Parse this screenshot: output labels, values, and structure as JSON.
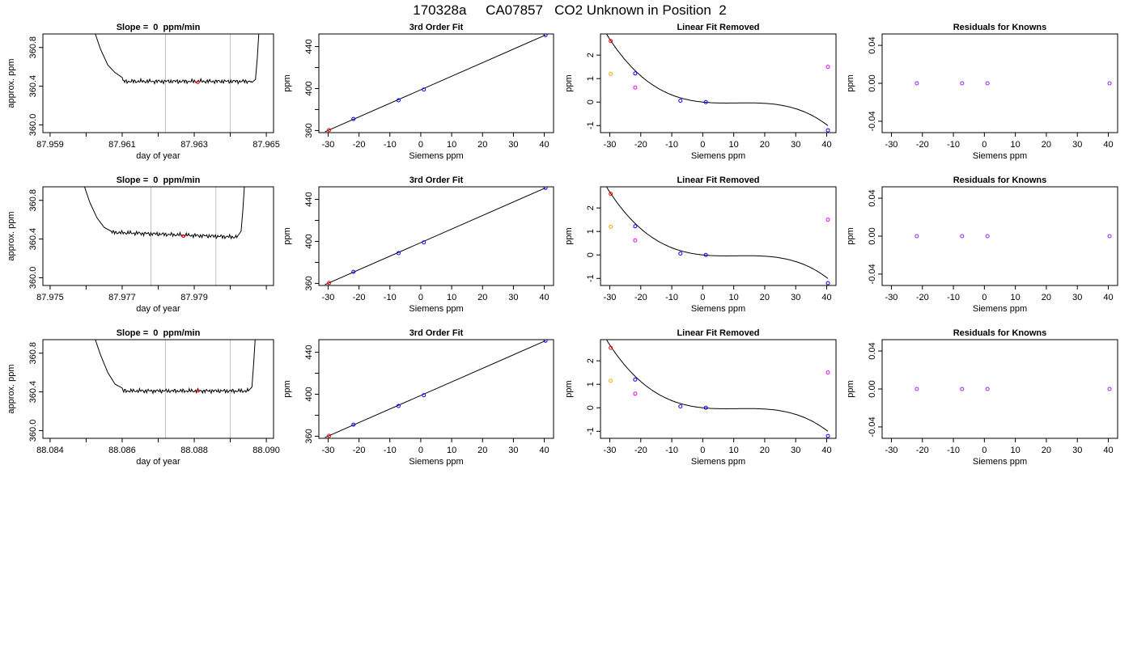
{
  "figure_title": "170328a     CA07857   CO2 Unknown in Position  2",
  "colors": {
    "line": "#000000",
    "vline": "#bebebe",
    "blue": "#0000ff",
    "red": "#ff0000",
    "orange": "#ffa500",
    "purple": "#a020f0",
    "magenta": "#ee00ee"
  },
  "chart_data": [
    {
      "type": "line",
      "title": "Slope =  0  ppm/min",
      "xlabel": "day of year",
      "ylabel": "approx. ppm",
      "xlim": [
        87.9588,
        87.9652
      ],
      "ylim": [
        359.92,
        360.94
      ],
      "xticks": [
        87.959,
        87.96,
        87.961,
        87.962,
        87.963,
        87.964,
        87.965
      ],
      "xtick_labels": [
        "87.959",
        "",
        "87.961",
        "",
        "87.963",
        "",
        "87.965"
      ],
      "yticks": [
        360.0,
        360.4,
        360.8
      ],
      "ytick_labels": [
        "360.0",
        "360.4",
        "360.8"
      ],
      "vlines": [
        87.9622,
        87.964
      ],
      "highlight": {
        "x": 87.9631,
        "y": 360.44,
        "color": "red"
      },
      "trace": {
        "x_start": 87.9602,
        "x_end": 87.9648,
        "baseline": 360.45,
        "baseline_end": 360.45,
        "left_tail": [
          [
            87.9602,
            361.0
          ],
          [
            87.9604,
            360.78
          ],
          [
            87.9606,
            360.62
          ],
          [
            87.9608,
            360.54
          ],
          [
            87.961,
            360.49
          ]
        ],
        "right_tail": [
          [
            87.9646,
            360.44
          ],
          [
            87.9647,
            360.47
          ],
          [
            87.96475,
            360.7
          ],
          [
            87.9648,
            361.0
          ]
        ]
      }
    },
    {
      "type": "scatter",
      "title": "3rd Order Fit",
      "xlabel": "Siemens ppm",
      "ylabel": "ppm",
      "xlim": [
        -33,
        43
      ],
      "ylim": [
        358,
        452
      ],
      "xticks": [
        -30,
        -20,
        -10,
        0,
        10,
        20,
        30,
        40
      ],
      "xtick_labels": [
        "-30",
        "-20",
        "-10",
        "0",
        "10",
        "20",
        "30",
        "40"
      ],
      "yticks": [
        360,
        380,
        400,
        420,
        440
      ],
      "ytick_labels": [
        "360",
        "",
        "400",
        "",
        "440"
      ],
      "points": [
        {
          "x": -29.7,
          "y": 360.4,
          "color": "red"
        },
        {
          "x": -21.8,
          "y": 371.0,
          "color": "blue"
        },
        {
          "x": -7.2,
          "y": 388.8,
          "color": "blue"
        },
        {
          "x": 1.0,
          "y": 399.0,
          "color": "blue"
        },
        {
          "x": 40.4,
          "y": 451.0,
          "color": "blue"
        }
      ],
      "fit": {
        "kind": "line",
        "x0": -31,
        "y0": 358.8,
        "x1": 40.4,
        "y1": 451.0
      }
    },
    {
      "type": "scatter",
      "title": "Linear Fit Removed",
      "xlabel": "Siemens ppm",
      "ylabel": "ppm",
      "xlim": [
        -33,
        43
      ],
      "ylim": [
        -1.3,
        2.9
      ],
      "xticks": [
        -30,
        -20,
        -10,
        0,
        10,
        20,
        30,
        40
      ],
      "xtick_labels": [
        "-30",
        "-20",
        "-10",
        "0",
        "10",
        "20",
        "30",
        "40"
      ],
      "yticks": [
        -1,
        0,
        1,
        2
      ],
      "ytick_labels": [
        "-1",
        "0",
        "1",
        "2"
      ],
      "points": [
        {
          "x": -29.7,
          "y": 2.6,
          "color": "red"
        },
        {
          "x": -29.7,
          "y": 1.2,
          "color": "orange"
        },
        {
          "x": -21.8,
          "y": 1.22,
          "color": "blue"
        },
        {
          "x": -21.8,
          "y": 0.62,
          "color": "magenta"
        },
        {
          "x": -7.2,
          "y": 0.06,
          "color": "blue"
        },
        {
          "x": 1.0,
          "y": 0.0,
          "color": "blue"
        },
        {
          "x": 40.4,
          "y": 1.5,
          "color": "magenta"
        },
        {
          "x": 40.4,
          "y": -1.2,
          "color": "blue"
        }
      ],
      "fit": {
        "kind": "cubic",
        "x_from": -31,
        "x_to": 40.4,
        "coef": [
          0.0,
          -0.0133,
          0.00133,
          -4e-05
        ]
      }
    },
    {
      "type": "scatter",
      "title": "Residuals for Knowns",
      "xlabel": "Siemens ppm",
      "ylabel": "ppm",
      "xlim": [
        -33,
        43
      ],
      "ylim": [
        -0.052,
        0.052
      ],
      "xticks": [
        -30,
        -20,
        -10,
        0,
        10,
        20,
        30,
        40
      ],
      "xtick_labels": [
        "-30",
        "-20",
        "-10",
        "0",
        "10",
        "20",
        "30",
        "40"
      ],
      "yticks": [
        -0.04,
        0.0,
        0.04
      ],
      "ytick_labels": [
        "-0.04",
        "0.00",
        "0.04"
      ],
      "points": [
        {
          "x": -21.8,
          "y": 0.0,
          "color": "purple"
        },
        {
          "x": -7.2,
          "y": 0.0,
          "color": "purple"
        },
        {
          "x": 1.0,
          "y": 0.0,
          "color": "purple"
        },
        {
          "x": 40.4,
          "y": 0.0,
          "color": "purple"
        }
      ]
    },
    {
      "type": "line",
      "title": "Slope =  0  ppm/min",
      "xlabel": "day of year",
      "ylabel": "approx. ppm",
      "xlim": [
        87.9748,
        87.9812
      ],
      "ylim": [
        359.92,
        360.94
      ],
      "xticks": [
        87.975,
        87.976,
        87.977,
        87.978,
        87.979,
        87.98,
        87.981
      ],
      "xtick_labels": [
        "87.975",
        "",
        "87.977",
        "",
        "87.979",
        "",
        ""
      ],
      "yticks": [
        360.0,
        360.4,
        360.8
      ],
      "ytick_labels": [
        "360.0",
        "360.4",
        "360.8"
      ],
      "vlines": [
        87.9778,
        87.9796
      ],
      "highlight": {
        "x": 87.9787,
        "y": 360.43,
        "color": "red"
      },
      "trace": {
        "x_start": 87.9759,
        "x_end": 87.9804,
        "baseline": 360.47,
        "baseline_end": 360.42,
        "left_tail": [
          [
            87.9759,
            361.0
          ],
          [
            87.9761,
            360.78
          ],
          [
            87.9763,
            360.62
          ],
          [
            87.9765,
            360.52
          ],
          [
            87.9767,
            360.48
          ]
        ],
        "right_tail": [
          [
            87.9802,
            360.43
          ],
          [
            87.9803,
            360.48
          ],
          [
            87.98035,
            360.7
          ],
          [
            87.9804,
            361.0
          ]
        ]
      }
    },
    {
      "type": "scatter",
      "title": "3rd Order Fit",
      "xlabel": "Siemens ppm",
      "ylabel": "ppm",
      "xlim": [
        -33,
        43
      ],
      "ylim": [
        358,
        452
      ],
      "xticks": [
        -30,
        -20,
        -10,
        0,
        10,
        20,
        30,
        40
      ],
      "xtick_labels": [
        "-30",
        "-20",
        "-10",
        "0",
        "10",
        "20",
        "30",
        "40"
      ],
      "yticks": [
        360,
        380,
        400,
        420,
        440
      ],
      "ytick_labels": [
        "360",
        "",
        "400",
        "",
        "440"
      ],
      "points": [
        {
          "x": -29.7,
          "y": 360.4,
          "color": "red"
        },
        {
          "x": -21.8,
          "y": 371.0,
          "color": "blue"
        },
        {
          "x": -7.2,
          "y": 388.8,
          "color": "blue"
        },
        {
          "x": 1.0,
          "y": 399.0,
          "color": "blue"
        },
        {
          "x": 40.4,
          "y": 451.0,
          "color": "blue"
        }
      ],
      "fit": {
        "kind": "line",
        "x0": -31,
        "y0": 358.8,
        "x1": 40.4,
        "y1": 451.0
      }
    },
    {
      "type": "scatter",
      "title": "Linear Fit Removed",
      "xlabel": "Siemens ppm",
      "ylabel": "ppm",
      "xlim": [
        -33,
        43
      ],
      "ylim": [
        -1.3,
        2.9
      ],
      "xticks": [
        -30,
        -20,
        -10,
        0,
        10,
        20,
        30,
        40
      ],
      "xtick_labels": [
        "-30",
        "-20",
        "-10",
        "0",
        "10",
        "20",
        "30",
        "40"
      ],
      "yticks": [
        -1,
        0,
        1,
        2
      ],
      "ytick_labels": [
        "-1",
        "0",
        "1",
        "2"
      ],
      "points": [
        {
          "x": -29.7,
          "y": 2.6,
          "color": "red"
        },
        {
          "x": -29.7,
          "y": 1.2,
          "color": "orange"
        },
        {
          "x": -21.8,
          "y": 1.22,
          "color": "blue"
        },
        {
          "x": -21.8,
          "y": 0.62,
          "color": "magenta"
        },
        {
          "x": -7.2,
          "y": 0.06,
          "color": "blue"
        },
        {
          "x": 1.0,
          "y": 0.0,
          "color": "blue"
        },
        {
          "x": 40.4,
          "y": 1.5,
          "color": "magenta"
        },
        {
          "x": 40.4,
          "y": -1.2,
          "color": "blue"
        }
      ],
      "fit": {
        "kind": "cubic",
        "x_from": -31,
        "x_to": 40.4,
        "coef": [
          0.0,
          -0.0133,
          0.00133,
          -4e-05
        ]
      }
    },
    {
      "type": "scatter",
      "title": "Residuals for Knowns",
      "xlabel": "Siemens ppm",
      "ylabel": "ppm",
      "xlim": [
        -33,
        43
      ],
      "ylim": [
        -0.052,
        0.052
      ],
      "xticks": [
        -30,
        -20,
        -10,
        0,
        10,
        20,
        30,
        40
      ],
      "xtick_labels": [
        "-30",
        "-20",
        "-10",
        "0",
        "10",
        "20",
        "30",
        "40"
      ],
      "yticks": [
        -0.04,
        0.0,
        0.04
      ],
      "ytick_labels": [
        "-0.04",
        "0.00",
        "0.04"
      ],
      "points": [
        {
          "x": -21.8,
          "y": 0.0,
          "color": "purple"
        },
        {
          "x": -7.2,
          "y": 0.0,
          "color": "purple"
        },
        {
          "x": 1.0,
          "y": 0.0,
          "color": "purple"
        },
        {
          "x": 40.4,
          "y": 0.0,
          "color": "purple"
        }
      ]
    },
    {
      "type": "line",
      "title": "Slope =  0  ppm/min",
      "xlabel": "day of year",
      "ylabel": "approx. ppm",
      "xlim": [
        88.0838,
        88.0902
      ],
      "ylim": [
        359.92,
        360.94
      ],
      "xticks": [
        88.084,
        88.085,
        88.086,
        88.087,
        88.088,
        88.089,
        88.09
      ],
      "xtick_labels": [
        "88.084",
        "",
        "88.086",
        "",
        "88.088",
        "",
        "88.090"
      ],
      "yticks": [
        360.0,
        360.4,
        360.8
      ],
      "ytick_labels": [
        "360.0",
        "360.4",
        "360.8"
      ],
      "vlines": [
        88.0872,
        88.089
      ],
      "highlight": {
        "x": 88.0881,
        "y": 360.41,
        "color": "red"
      },
      "trace": {
        "x_start": 88.0852,
        "x_end": 88.0897,
        "baseline": 360.41,
        "baseline_end": 360.41,
        "left_tail": [
          [
            88.0852,
            361.0
          ],
          [
            88.0854,
            360.78
          ],
          [
            88.0856,
            360.6
          ],
          [
            88.0858,
            360.48
          ],
          [
            88.086,
            360.44
          ]
        ],
        "right_tail": [
          [
            88.0895,
            360.41
          ],
          [
            88.0896,
            360.45
          ],
          [
            88.08965,
            360.7
          ],
          [
            88.0897,
            361.0
          ]
        ]
      }
    },
    {
      "type": "scatter",
      "title": "3rd Order Fit",
      "xlabel": "Siemens ppm",
      "ylabel": "ppm",
      "xlim": [
        -33,
        43
      ],
      "ylim": [
        358,
        452
      ],
      "xticks": [
        -30,
        -20,
        -10,
        0,
        10,
        20,
        30,
        40
      ],
      "xtick_labels": [
        "-30",
        "-20",
        "-10",
        "0",
        "10",
        "20",
        "30",
        "40"
      ],
      "yticks": [
        360,
        380,
        400,
        420,
        440
      ],
      "ytick_labels": [
        "360",
        "",
        "400",
        "",
        "440"
      ],
      "points": [
        {
          "x": -29.7,
          "y": 360.4,
          "color": "red"
        },
        {
          "x": -21.8,
          "y": 371.0,
          "color": "blue"
        },
        {
          "x": -7.2,
          "y": 388.8,
          "color": "blue"
        },
        {
          "x": 1.0,
          "y": 399.0,
          "color": "blue"
        },
        {
          "x": 40.4,
          "y": 451.0,
          "color": "blue"
        }
      ],
      "fit": {
        "kind": "line",
        "x0": -31,
        "y0": 358.8,
        "x1": 40.4,
        "y1": 451.0
      }
    },
    {
      "type": "scatter",
      "title": "Linear Fit Removed",
      "xlabel": "Siemens ppm",
      "ylabel": "ppm",
      "xlim": [
        -33,
        43
      ],
      "ylim": [
        -1.3,
        2.9
      ],
      "xticks": [
        -30,
        -20,
        -10,
        0,
        10,
        20,
        30,
        40
      ],
      "xtick_labels": [
        "-30",
        "-20",
        "-10",
        "0",
        "10",
        "20",
        "30",
        "40"
      ],
      "yticks": [
        -1,
        0,
        1,
        2
      ],
      "ytick_labels": [
        "-1",
        "0",
        "1",
        "2"
      ],
      "points": [
        {
          "x": -29.7,
          "y": 2.55,
          "color": "red"
        },
        {
          "x": -29.7,
          "y": 1.15,
          "color": "orange"
        },
        {
          "x": -21.8,
          "y": 1.2,
          "color": "blue"
        },
        {
          "x": -21.8,
          "y": 0.6,
          "color": "magenta"
        },
        {
          "x": -7.2,
          "y": 0.06,
          "color": "blue"
        },
        {
          "x": 1.0,
          "y": 0.0,
          "color": "blue"
        },
        {
          "x": 40.4,
          "y": 1.5,
          "color": "magenta"
        },
        {
          "x": 40.4,
          "y": -1.2,
          "color": "blue"
        }
      ],
      "fit": {
        "kind": "cubic",
        "x_from": -31,
        "x_to": 40.4,
        "coef": [
          0.0,
          -0.0133,
          0.00133,
          -4e-05
        ]
      }
    },
    {
      "type": "scatter",
      "title": "Residuals for Knowns",
      "xlabel": "Siemens ppm",
      "ylabel": "ppm",
      "xlim": [
        -33,
        43
      ],
      "ylim": [
        -0.052,
        0.052
      ],
      "xticks": [
        -30,
        -20,
        -10,
        0,
        10,
        20,
        30,
        40
      ],
      "xtick_labels": [
        "-30",
        "-20",
        "-10",
        "0",
        "10",
        "20",
        "30",
        "40"
      ],
      "yticks": [
        -0.04,
        0.0,
        0.04
      ],
      "ytick_labels": [
        "-0.04",
        "0.00",
        "0.04"
      ],
      "points": [
        {
          "x": -21.8,
          "y": 0.0,
          "color": "purple"
        },
        {
          "x": -7.2,
          "y": 0.0,
          "color": "purple"
        },
        {
          "x": 1.0,
          "y": 0.0,
          "color": "purple"
        },
        {
          "x": 40.4,
          "y": 0.0,
          "color": "purple"
        }
      ]
    }
  ]
}
